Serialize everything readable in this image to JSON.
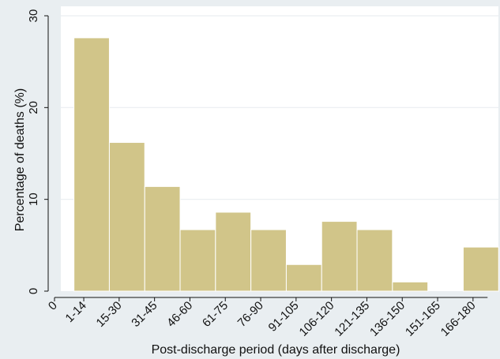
{
  "chart_data": {
    "type": "bar",
    "title": "",
    "xlabel": "Post-discharge period (days after discharge)",
    "ylabel": "Percentage of deaths (%)",
    "ylim": [
      0,
      30
    ],
    "yticks": [
      0,
      10,
      20,
      30
    ],
    "grid": true,
    "x_origin_label": "0",
    "categories": [
      "1-14",
      "15-30",
      "31-45",
      "46-60",
      "61-75",
      "76-90",
      "91-105",
      "106-120",
      "121-135",
      "136-150",
      "151-165",
      "166-180"
    ],
    "values": [
      27.6,
      16.2,
      11.4,
      6.7,
      8.6,
      6.7,
      2.9,
      7.6,
      6.7,
      1.0,
      0,
      4.8
    ],
    "colors": {
      "background": "#e9eef1",
      "plot": "#ffffff",
      "grid": "#e9eef1",
      "bar_fill": "#d1c589",
      "bar_edge": "#ffffff"
    }
  }
}
